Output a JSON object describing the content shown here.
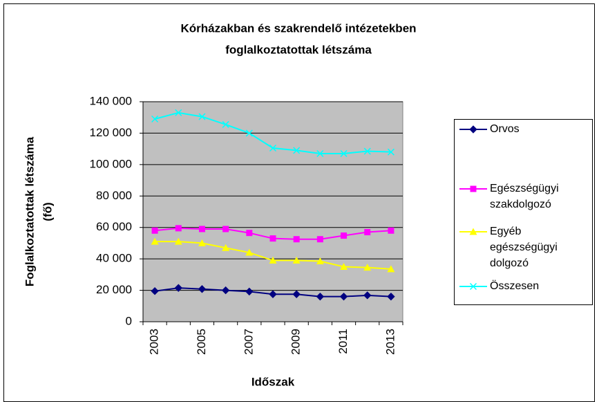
{
  "chart_data": {
    "type": "line",
    "title": [
      "Kórházakban és szakrendelő intézetekben",
      "foglalkoztatottak létszáma"
    ],
    "ylabel": [
      "Foglalkoztatottak létszáma",
      "(fő)"
    ],
    "xlabel": "Időszak",
    "categories": [
      2003,
      null,
      2005,
      null,
      2007,
      null,
      2009,
      null,
      2011,
      null,
      2013
    ],
    "series": [
      {
        "name": "Orvos",
        "color": "#000080",
        "marker": "diamond",
        "values": [
          19500,
          21500,
          20800,
          20000,
          19200,
          17500,
          17500,
          16000,
          16000,
          16800,
          16000
        ]
      },
      {
        "name": "Egészségügyi szakdolgozó",
        "color": "#ff00ff",
        "marker": "square",
        "values": [
          58000,
          59500,
          59000,
          59000,
          56500,
          53000,
          52500,
          52500,
          54800,
          57000,
          58000
        ]
      },
      {
        "name": "Egyéb egészségügyi dolgozó",
        "color": "#ffff00",
        "marker": "triangle",
        "values": [
          51000,
          51000,
          50000,
          47000,
          44000,
          39000,
          39000,
          38500,
          35000,
          34500,
          33500
        ]
      },
      {
        "name": "Összesen",
        "color": "#00ffff",
        "marker": "x",
        "values": [
          129000,
          133000,
          130500,
          125500,
          120000,
          110500,
          109000,
          107000,
          107000,
          108500,
          108000
        ]
      }
    ],
    "ylim": [
      0,
      140000
    ],
    "yticks": [
      0,
      {
        "value": 20000,
        "label": "20 000"
      },
      {
        "value": 40000,
        "label": "40 000"
      },
      {
        "value": 60000,
        "label": "60 000"
      },
      {
        "value": 80000,
        "label": "80 000"
      },
      {
        "value": 100000,
        "label": "100 000"
      },
      {
        "value": 120000,
        "label": "120 000"
      },
      {
        "value": 140000,
        "label": "140 000"
      }
    ],
    "grid": true,
    "legend": "right",
    "plot_background": "#c0c0c0"
  }
}
